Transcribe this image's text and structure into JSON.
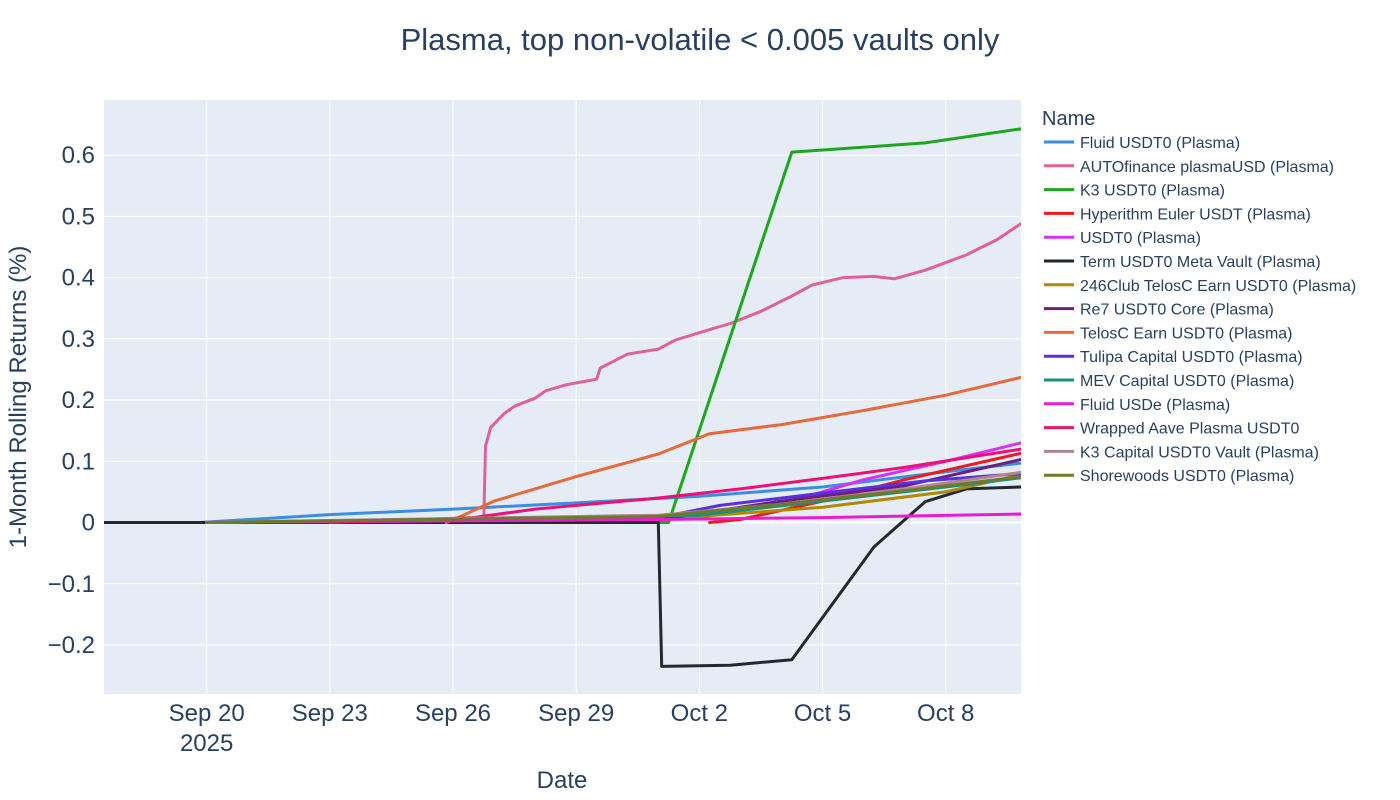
{
  "chart_data": {
    "type": "line",
    "title": "Plasma, top non-volatile < 0.005 vaults only",
    "xlabel": "Date",
    "ylabel": "1-Month Rolling Returns (%)",
    "legend_title": "Name",
    "legend_position": "right",
    "grid": true,
    "background": "#e5ecf6",
    "xlim": [
      "2025-09-17T12:00",
      "2025-10-09T20:00"
    ],
    "ylim": [
      -0.28,
      0.69
    ],
    "x_ticks": [
      {
        "date": "2025-09-20",
        "label": "Sep 20",
        "sublabel": "2025"
      },
      {
        "date": "2025-09-23",
        "label": "Sep 23",
        "sublabel": ""
      },
      {
        "date": "2025-09-26",
        "label": "Sep 26",
        "sublabel": ""
      },
      {
        "date": "2025-09-29",
        "label": "Sep 29",
        "sublabel": ""
      },
      {
        "date": "2025-10-02",
        "label": "Oct 2",
        "sublabel": ""
      },
      {
        "date": "2025-10-05",
        "label": "Oct 5",
        "sublabel": ""
      },
      {
        "date": "2025-10-08",
        "label": "Oct 8",
        "sublabel": ""
      }
    ],
    "y_ticks": [
      {
        "value": -0.2,
        "label": "−0.2"
      },
      {
        "value": -0.1,
        "label": "−0.1"
      },
      {
        "value": 0,
        "label": "0"
      },
      {
        "value": 0.1,
        "label": "0.1"
      },
      {
        "value": 0.2,
        "label": "0.2"
      },
      {
        "value": 0.3,
        "label": "0.3"
      },
      {
        "value": 0.4,
        "label": "0.4"
      },
      {
        "value": 0.5,
        "label": "0.5"
      },
      {
        "value": 0.6,
        "label": "0.6"
      }
    ],
    "series": [
      {
        "name": "Fluid USDT0 (Plasma)",
        "color": "#3b8ee0",
        "points": [
          [
            "2025-09-19T20:00",
            0
          ],
          [
            "2025-09-23T00:00",
            0.013
          ],
          [
            "2025-09-26T00:00",
            0.022
          ],
          [
            "2025-09-29T00:00",
            0.032
          ],
          [
            "2025-10-02T00:00",
            0.043
          ],
          [
            "2025-10-05T00:00",
            0.058
          ],
          [
            "2025-10-08T00:00",
            0.083
          ],
          [
            "2025-10-09T20:00",
            0.097
          ]
        ]
      },
      {
        "name": "AUTOfinance plasmaUSD (Plasma)",
        "color": "#e0609a",
        "points": [
          [
            "2025-09-19T20:00",
            0
          ],
          [
            "2025-09-24T00:00",
            0.003
          ],
          [
            "2025-09-26T18:00",
            0.006
          ],
          [
            "2025-09-26T19:00",
            0.125
          ],
          [
            "2025-09-26T22:00",
            0.155
          ],
          [
            "2025-09-27T06:00",
            0.178
          ],
          [
            "2025-09-27T12:00",
            0.19
          ],
          [
            "2025-09-28T00:00",
            0.203
          ],
          [
            "2025-09-28T06:00",
            0.215
          ],
          [
            "2025-09-28T18:00",
            0.225
          ],
          [
            "2025-09-29T12:00",
            0.234
          ],
          [
            "2025-09-29T14:00",
            0.252
          ],
          [
            "2025-09-30T06:00",
            0.275
          ],
          [
            "2025-10-01T00:00",
            0.283
          ],
          [
            "2025-10-01T10:00",
            0.298
          ],
          [
            "2025-10-02T00:00",
            0.31
          ],
          [
            "2025-10-02T18:00",
            0.325
          ],
          [
            "2025-10-03T12:00",
            0.345
          ],
          [
            "2025-10-04T06:00",
            0.37
          ],
          [
            "2025-10-04T18:00",
            0.388
          ],
          [
            "2025-10-05T12:00",
            0.4
          ],
          [
            "2025-10-06T06:00",
            0.402
          ],
          [
            "2025-10-06T18:00",
            0.398
          ],
          [
            "2025-10-07T12:00",
            0.412
          ],
          [
            "2025-10-08T12:00",
            0.437
          ],
          [
            "2025-10-09T06:00",
            0.462
          ],
          [
            "2025-10-09T20:00",
            0.488
          ]
        ]
      },
      {
        "name": "K3 USDT0 (Plasma)",
        "color": "#1fa61f",
        "points": [
          [
            "2025-09-20T00:00",
            0
          ],
          [
            "2025-10-01T06:00",
            0
          ],
          [
            "2025-10-04T06:00",
            0.605
          ],
          [
            "2025-10-07T12:00",
            0.62
          ],
          [
            "2025-10-09T20:00",
            0.643
          ]
        ]
      },
      {
        "name": "Hyperithm Euler USDT (Plasma)",
        "color": "#f0191e",
        "points": [
          [
            "2025-10-02T06:00",
            0
          ],
          [
            "2025-10-03T00:00",
            0.005
          ],
          [
            "2025-10-05T00:00",
            0.035
          ],
          [
            "2025-10-07T00:00",
            0.07
          ],
          [
            "2025-10-09T20:00",
            0.113
          ]
        ]
      },
      {
        "name": "USDT0 (Plasma)",
        "color": "#d633f0",
        "points": [
          [
            "2025-09-20T00:00",
            0
          ],
          [
            "2025-10-02T00:00",
            0.008
          ],
          [
            "2025-10-04T12:00",
            0.04
          ],
          [
            "2025-10-06T00:00",
            0.07
          ],
          [
            "2025-10-08T00:00",
            0.1
          ],
          [
            "2025-10-09T20:00",
            0.13
          ]
        ]
      },
      {
        "name": "Term USDT0 Meta Vault (Plasma)",
        "color": "#222a30",
        "points": [
          [
            "2025-09-17T12:00",
            0
          ],
          [
            "2025-10-01T00:00",
            0
          ],
          [
            "2025-10-01T02:00",
            -0.235
          ],
          [
            "2025-10-02T18:00",
            -0.233
          ],
          [
            "2025-10-04T06:00",
            -0.224
          ],
          [
            "2025-10-06T06:00",
            -0.04
          ],
          [
            "2025-10-07T12:00",
            0.034
          ],
          [
            "2025-10-08T12:00",
            0.055
          ],
          [
            "2025-10-09T20:00",
            0.058
          ]
        ]
      },
      {
        "name": "246Club TelosC Earn USDT0 (Plasma)",
        "color": "#b08a00",
        "points": [
          [
            "2025-09-20T00:00",
            0
          ],
          [
            "2025-10-02T00:00",
            0.01
          ],
          [
            "2025-10-05T00:00",
            0.025
          ],
          [
            "2025-10-08T00:00",
            0.05
          ],
          [
            "2025-10-09T20:00",
            0.078
          ]
        ]
      },
      {
        "name": "Re7 USDT0 Core (Plasma)",
        "color": "#6b1f80",
        "points": [
          [
            "2025-09-20T00:00",
            0
          ],
          [
            "2025-10-01T00:00",
            0.005
          ],
          [
            "2025-10-04T00:00",
            0.035
          ],
          [
            "2025-10-07T00:00",
            0.06
          ],
          [
            "2025-10-09T20:00",
            0.103
          ]
        ]
      },
      {
        "name": "TelosC Earn USDT0 (Plasma)",
        "color": "#e86a3a",
        "points": [
          [
            "2025-09-25T20:00",
            0
          ],
          [
            "2025-09-26T06:00",
            0.012
          ],
          [
            "2025-09-27T00:00",
            0.035
          ],
          [
            "2025-09-29T00:00",
            0.075
          ],
          [
            "2025-10-01T00:00",
            0.112
          ],
          [
            "2025-10-02T06:00",
            0.145
          ],
          [
            "2025-10-04T00:00",
            0.16
          ],
          [
            "2025-10-06T00:00",
            0.183
          ],
          [
            "2025-10-08T00:00",
            0.208
          ],
          [
            "2025-10-09T20:00",
            0.237
          ]
        ]
      },
      {
        "name": "Tulipa Capital USDT0 (Plasma)",
        "color": "#5b2ee0",
        "points": [
          [
            "2025-09-20T00:00",
            0
          ],
          [
            "2025-10-01T00:00",
            0.008
          ],
          [
            "2025-10-02T12:00",
            0.028
          ],
          [
            "2025-10-05T00:00",
            0.048
          ],
          [
            "2025-10-07T12:00",
            0.068
          ],
          [
            "2025-10-09T20:00",
            0.08
          ]
        ]
      },
      {
        "name": "MEV Capital USDT0 (Plasma)",
        "color": "#16917f",
        "points": [
          [
            "2025-09-20T00:00",
            0
          ],
          [
            "2025-10-02T00:00",
            0.012
          ],
          [
            "2025-10-05T00:00",
            0.035
          ],
          [
            "2025-10-08T00:00",
            0.058
          ],
          [
            "2025-10-09T20:00",
            0.073
          ]
        ]
      },
      {
        "name": "Fluid USDe (Plasma)",
        "color": "#ee1ad0",
        "points": [
          [
            "2025-09-20T00:00",
            0
          ],
          [
            "2025-10-01T00:00",
            0.005
          ],
          [
            "2025-10-05T00:00",
            0.008
          ],
          [
            "2025-10-09T20:00",
            0.014
          ]
        ]
      },
      {
        "name": "Wrapped Aave Plasma USDT0",
        "color": "#ec1177",
        "points": [
          [
            "2025-09-23T00:00",
            0
          ],
          [
            "2025-09-26T12:00",
            0.008
          ],
          [
            "2025-09-28T00:00",
            0.022
          ],
          [
            "2025-10-01T00:00",
            0.04
          ],
          [
            "2025-10-03T00:00",
            0.055
          ],
          [
            "2025-10-05T00:00",
            0.072
          ],
          [
            "2025-10-07T00:00",
            0.09
          ],
          [
            "2025-10-09T20:00",
            0.12
          ]
        ]
      },
      {
        "name": "K3 Capital USDT0 Vault (Plasma)",
        "color": "#b08690",
        "points": [
          [
            "2025-09-20T00:00",
            0
          ],
          [
            "2025-10-01T00:00",
            0.012
          ],
          [
            "2025-10-04T00:00",
            0.03
          ],
          [
            "2025-10-07T00:00",
            0.055
          ],
          [
            "2025-10-09T20:00",
            0.082
          ]
        ]
      },
      {
        "name": "Shorewoods USDT0 (Plasma)",
        "color": "#6e7b2e",
        "points": [
          [
            "2025-09-20T00:00",
            0
          ],
          [
            "2025-10-01T00:00",
            0.01
          ],
          [
            "2025-10-04T00:00",
            0.03
          ],
          [
            "2025-10-07T00:00",
            0.052
          ],
          [
            "2025-10-09T20:00",
            0.075
          ]
        ]
      }
    ]
  }
}
